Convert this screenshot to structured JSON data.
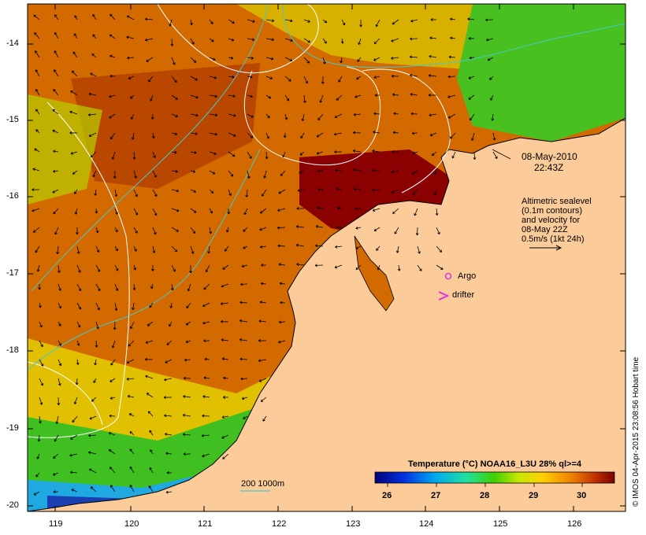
{
  "map": {
    "timestamp_line1": "08-May-2010",
    "timestamp_line2": "22:43Z",
    "info_lines": [
      "Altimetric sealevel",
      "(0.1m contours)",
      "and velocity for",
      "08-May 22Z",
      "0.5m/s (1kt 24h)"
    ],
    "legend_argo": "Argo",
    "legend_drifter": "drifter",
    "isobath_label": "200  1000m",
    "colorbar_title": "Temperature (°C) NOAA16_L3U 28% ql>=4",
    "colorbar_ticks": [
      "26",
      "27",
      "28",
      "29",
      "30"
    ],
    "credit": "© IMOS 04-Apr-2015 23:08:56 Hobart time",
    "lon_ticks": [
      "119",
      "120",
      "121",
      "122",
      "123",
      "124",
      "125",
      "126"
    ],
    "lat_ticks": [
      "-14",
      "-15",
      "-16",
      "-17",
      "-18",
      "-19",
      "-20"
    ],
    "colors": {
      "land": "#fccb9a",
      "warm": "#b84400",
      "hot": "#8b0000",
      "coast_cool": "#1a3fb0",
      "contour_sealevel": "#ffffff",
      "contour_isobath": "#46c8c8",
      "marker": "#e030e0"
    }
  }
}
